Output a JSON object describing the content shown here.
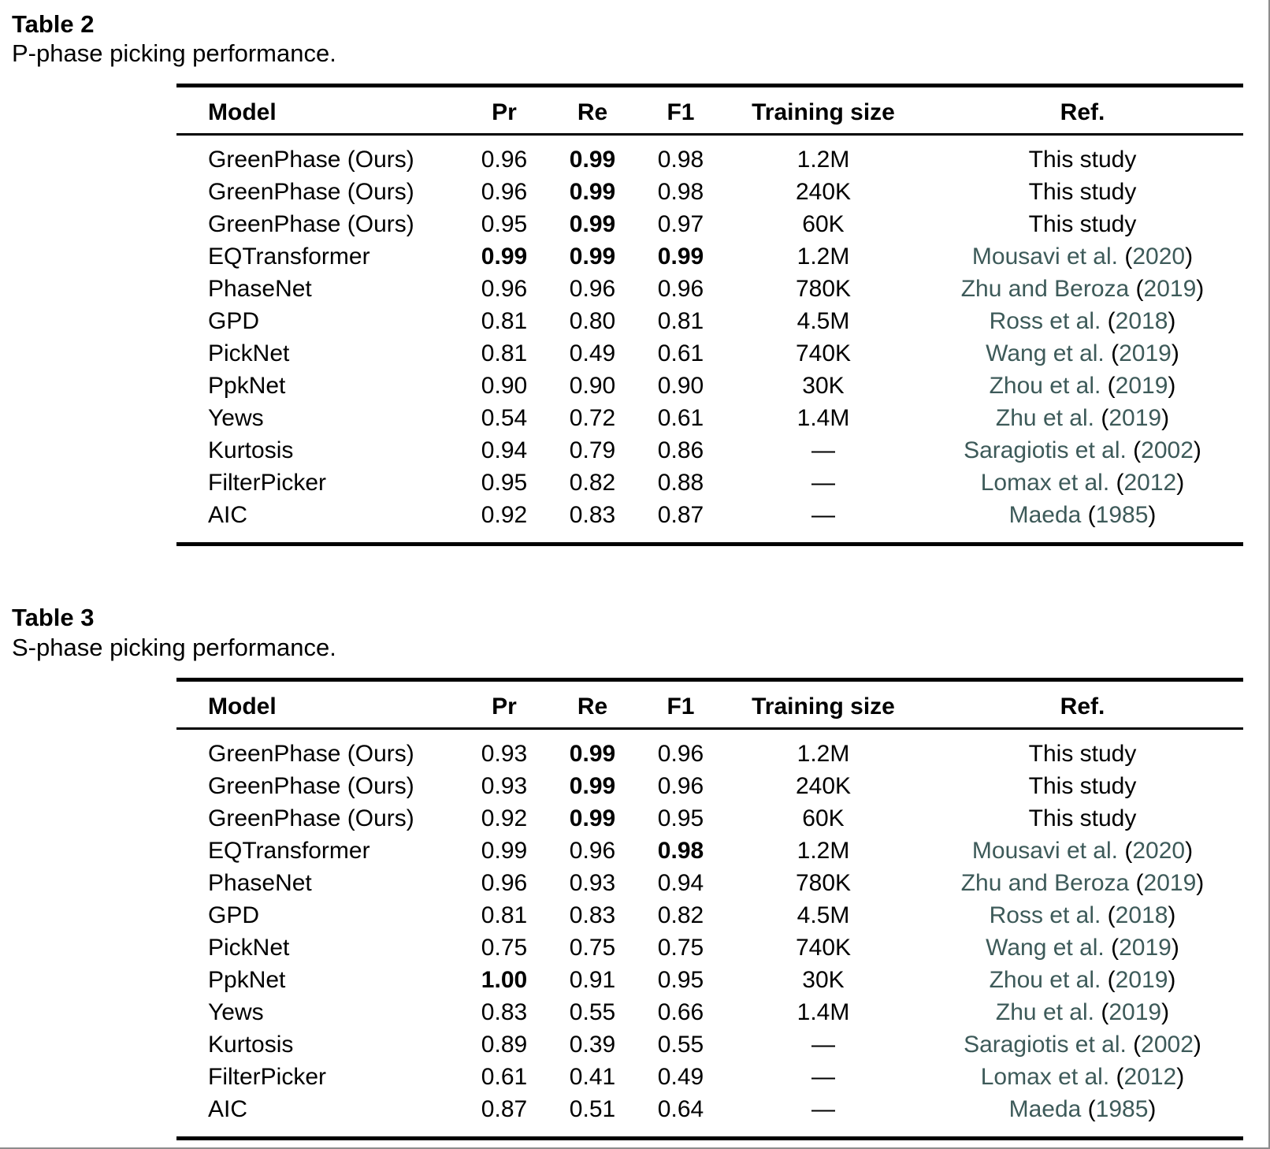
{
  "frame": {
    "border_color": "#8c8c8c"
  },
  "styles": {
    "citation_color": "#3d5a59",
    "text_color": "#000000",
    "rule_color": "#000000"
  },
  "tables": [
    {
      "label": "Table 2",
      "caption": "P-phase picking performance.",
      "headers": [
        "Model",
        "Pr",
        "Re",
        "F1",
        "Training size",
        "Ref."
      ],
      "rows": [
        {
          "cells": [
            "GreenPhase (Ours)",
            "0.96",
            "0.99",
            "0.98",
            "1.2M"
          ],
          "bold": [
            2
          ],
          "ref": {
            "text": "This study"
          }
        },
        {
          "cells": [
            "GreenPhase (Ours)",
            "0.96",
            "0.99",
            "0.98",
            "240K"
          ],
          "bold": [
            2
          ],
          "ref": {
            "text": "This study"
          }
        },
        {
          "cells": [
            "GreenPhase (Ours)",
            "0.95",
            "0.99",
            "0.97",
            "60K"
          ],
          "bold": [
            2
          ],
          "ref": {
            "text": "This study"
          }
        },
        {
          "cells": [
            "EQTransformer",
            "0.99",
            "0.99",
            "0.99",
            "1.2M"
          ],
          "bold": [
            1,
            2,
            3
          ],
          "ref": {
            "authors": "Mousavi et al.",
            "year": "2020"
          }
        },
        {
          "cells": [
            "PhaseNet",
            "0.96",
            "0.96",
            "0.96",
            "780K"
          ],
          "bold": [],
          "ref": {
            "authors": "Zhu and Beroza",
            "year": "2019"
          }
        },
        {
          "cells": [
            "GPD",
            "0.81",
            "0.80",
            "0.81",
            "4.5M"
          ],
          "bold": [],
          "ref": {
            "authors": "Ross et al.",
            "year": "2018"
          }
        },
        {
          "cells": [
            "PickNet",
            "0.81",
            "0.49",
            "0.61",
            "740K"
          ],
          "bold": [],
          "ref": {
            "authors": "Wang et al.",
            "year": "2019"
          }
        },
        {
          "cells": [
            "PpkNet",
            "0.90",
            "0.90",
            "0.90",
            "30K"
          ],
          "bold": [],
          "ref": {
            "authors": "Zhou et al.",
            "year": "2019"
          }
        },
        {
          "cells": [
            "Yews",
            "0.54",
            "0.72",
            "0.61",
            "1.4M"
          ],
          "bold": [],
          "ref": {
            "authors": "Zhu et al.",
            "year": "2019"
          }
        },
        {
          "cells": [
            "Kurtosis",
            "0.94",
            "0.79",
            "0.86",
            "—"
          ],
          "bold": [],
          "ref": {
            "authors": "Saragiotis et al.",
            "year": "2002"
          }
        },
        {
          "cells": [
            "FilterPicker",
            "0.95",
            "0.82",
            "0.88",
            "—"
          ],
          "bold": [],
          "ref": {
            "authors": "Lomax et al.",
            "year": "2012"
          }
        },
        {
          "cells": [
            "AIC",
            "0.92",
            "0.83",
            "0.87",
            "—"
          ],
          "bold": [],
          "ref": {
            "authors": "Maeda",
            "year": "1985"
          }
        }
      ]
    },
    {
      "label": "Table 3",
      "caption": "S-phase picking performance.",
      "headers": [
        "Model",
        "Pr",
        "Re",
        "F1",
        "Training size",
        "Ref."
      ],
      "rows": [
        {
          "cells": [
            "GreenPhase (Ours)",
            "0.93",
            "0.99",
            "0.96",
            "1.2M"
          ],
          "bold": [
            2
          ],
          "ref": {
            "text": "This study"
          }
        },
        {
          "cells": [
            "GreenPhase (Ours)",
            "0.93",
            "0.99",
            "0.96",
            "240K"
          ],
          "bold": [
            2
          ],
          "ref": {
            "text": "This study"
          }
        },
        {
          "cells": [
            "GreenPhase (Ours)",
            "0.92",
            "0.99",
            "0.95",
            "60K"
          ],
          "bold": [
            2
          ],
          "ref": {
            "text": "This study"
          }
        },
        {
          "cells": [
            "EQTransformer",
            "0.99",
            "0.96",
            "0.98",
            "1.2M"
          ],
          "bold": [
            3
          ],
          "ref": {
            "authors": "Mousavi et al.",
            "year": "2020"
          }
        },
        {
          "cells": [
            "PhaseNet",
            "0.96",
            "0.93",
            "0.94",
            "780K"
          ],
          "bold": [],
          "ref": {
            "authors": "Zhu and Beroza",
            "year": "2019"
          }
        },
        {
          "cells": [
            "GPD",
            "0.81",
            "0.83",
            "0.82",
            "4.5M"
          ],
          "bold": [],
          "ref": {
            "authors": "Ross et al.",
            "year": "2018"
          }
        },
        {
          "cells": [
            "PickNet",
            "0.75",
            "0.75",
            "0.75",
            "740K"
          ],
          "bold": [],
          "ref": {
            "authors": "Wang et al.",
            "year": "2019"
          }
        },
        {
          "cells": [
            "PpkNet",
            "1.00",
            "0.91",
            "0.95",
            "30K"
          ],
          "bold": [
            1
          ],
          "ref": {
            "authors": "Zhou et al.",
            "year": "2019"
          }
        },
        {
          "cells": [
            "Yews",
            "0.83",
            "0.55",
            "0.66",
            "1.4M"
          ],
          "bold": [],
          "ref": {
            "authors": "Zhu et al.",
            "year": "2019"
          }
        },
        {
          "cells": [
            "Kurtosis",
            "0.89",
            "0.39",
            "0.55",
            "—"
          ],
          "bold": [],
          "ref": {
            "authors": "Saragiotis et al.",
            "year": "2002"
          }
        },
        {
          "cells": [
            "FilterPicker",
            "0.61",
            "0.41",
            "0.49",
            "—"
          ],
          "bold": [],
          "ref": {
            "authors": "Lomax et al.",
            "year": "2012"
          }
        },
        {
          "cells": [
            "AIC",
            "0.87",
            "0.51",
            "0.64",
            "—"
          ],
          "bold": [],
          "ref": {
            "authors": "Maeda",
            "year": "1985"
          }
        }
      ]
    }
  ]
}
